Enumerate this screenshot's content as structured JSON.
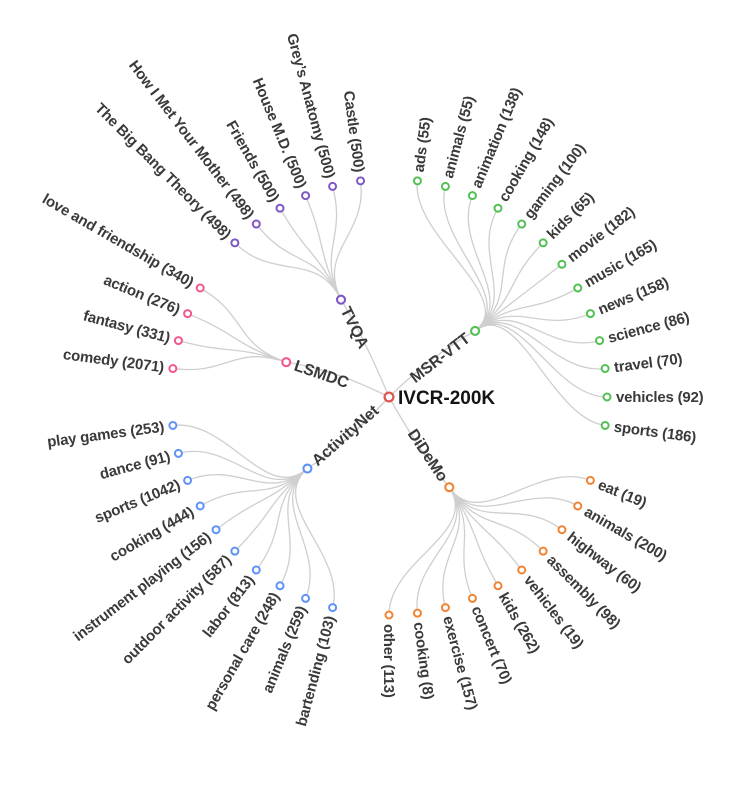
{
  "figure": {
    "title": "IVCR-200K radial category tree"
  },
  "colors": {
    "root": "#e05752",
    "link": "#cfcfcf",
    "text": "#3a3a3a",
    "msr_vtt": "#53c053",
    "didemo": "#f08434",
    "activitynet": "#5e92f5",
    "lsmdc": "#f6568f",
    "tvqa": "#7e57c5"
  },
  "tree": {
    "root": {
      "label": "IVCR-200K"
    },
    "branches": [
      {
        "name": "MSR-VTT",
        "color": "#53c053",
        "leaves": [
          {
            "label": "ads",
            "count": 55,
            "text": "ads (55)"
          },
          {
            "label": "animals",
            "count": 55,
            "text": "animals (55)"
          },
          {
            "label": "animation",
            "count": 138,
            "text": "animation (138)"
          },
          {
            "label": "cooking",
            "count": 148,
            "text": "cooking (148)"
          },
          {
            "label": "gaming",
            "count": 100,
            "text": "gaming (100)"
          },
          {
            "label": "kids",
            "count": 65,
            "text": "kids (65)"
          },
          {
            "label": "movie",
            "count": 182,
            "text": "movie (182)"
          },
          {
            "label": "music",
            "count": 165,
            "text": "music (165)"
          },
          {
            "label": "news",
            "count": 158,
            "text": "news (158)"
          },
          {
            "label": "science",
            "count": 86,
            "text": "science (86)"
          },
          {
            "label": "travel",
            "count": 70,
            "text": "travel (70)"
          },
          {
            "label": "vehicles",
            "count": 92,
            "text": "vehicles (92)"
          },
          {
            "label": "sports",
            "count": 186,
            "text": "sports (186)"
          }
        ]
      },
      {
        "name": "DiDeMo",
        "color": "#f08434",
        "leaves": [
          {
            "label": "eat",
            "count": 19,
            "text": "eat (19)"
          },
          {
            "label": "animals",
            "count": 200,
            "text": "animals (200)"
          },
          {
            "label": "highway",
            "count": 60,
            "text": "highway (60)"
          },
          {
            "label": "assembly",
            "count": 98,
            "text": "assembly (98)"
          },
          {
            "label": "vehicles",
            "count": 19,
            "text": "vehicles (19)"
          },
          {
            "label": "kids",
            "count": 262,
            "text": "kids (262)"
          },
          {
            "label": "concert",
            "count": 70,
            "text": "concert (70)"
          },
          {
            "label": "exercise",
            "count": 157,
            "text": "exercise (157)"
          },
          {
            "label": "cooking",
            "count": 8,
            "text": "cooking (8)"
          },
          {
            "label": "other",
            "count": 113,
            "text": "other (113)"
          }
        ]
      },
      {
        "name": "ActivityNet",
        "color": "#5e92f5",
        "leaves": [
          {
            "label": "play games",
            "count": 253,
            "text": "play games (253)"
          },
          {
            "label": "dance",
            "count": 91,
            "text": "dance (91)"
          },
          {
            "label": "sports",
            "count": 1042,
            "text": "sports (1042)"
          },
          {
            "label": "cooking",
            "count": 444,
            "text": "cooking (444)"
          },
          {
            "label": "instrument playing",
            "count": 156,
            "text": "instrument playing (156)"
          },
          {
            "label": "outdoor activity",
            "count": 587,
            "text": "outdoor activity (587)"
          },
          {
            "label": "labor",
            "count": 813,
            "text": "labor (813)"
          },
          {
            "label": "personal care",
            "count": 248,
            "text": "personal care (248)"
          },
          {
            "label": "animals",
            "count": 259,
            "text": "animals (259)"
          },
          {
            "label": "bartending",
            "count": 103,
            "text": "bartending (103)"
          }
        ]
      },
      {
        "name": "LSMDC",
        "color": "#f6568f",
        "leaves": [
          {
            "label": "love and friendship",
            "count": 340,
            "text": "love and friendship (340)"
          },
          {
            "label": "action",
            "count": 276,
            "text": "action (276)"
          },
          {
            "label": "fantasy",
            "count": 331,
            "text": "fantasy (331)"
          },
          {
            "label": "comedy",
            "count": 2071,
            "text": "comedy (2071)"
          }
        ]
      },
      {
        "name": "TVQA",
        "color": "#7e57c5",
        "leaves": [
          {
            "label": "The Big Bang Theory",
            "count": 498,
            "text": "The Big Bang Theory (498)"
          },
          {
            "label": "How I Met Your Mother",
            "count": 498,
            "text": "How I Met Your Mother (498)"
          },
          {
            "label": "Friends",
            "count": 500,
            "text": "Friends (500)"
          },
          {
            "label": "House M.D.",
            "count": 500,
            "text": "House M.D. (500)"
          },
          {
            "label": "Grey’s Anatomy",
            "count": 500,
            "text": "Grey’s Anatomy (500)"
          },
          {
            "label": "Castle",
            "count": 500,
            "text": "Castle (500)"
          }
        ]
      }
    ]
  }
}
